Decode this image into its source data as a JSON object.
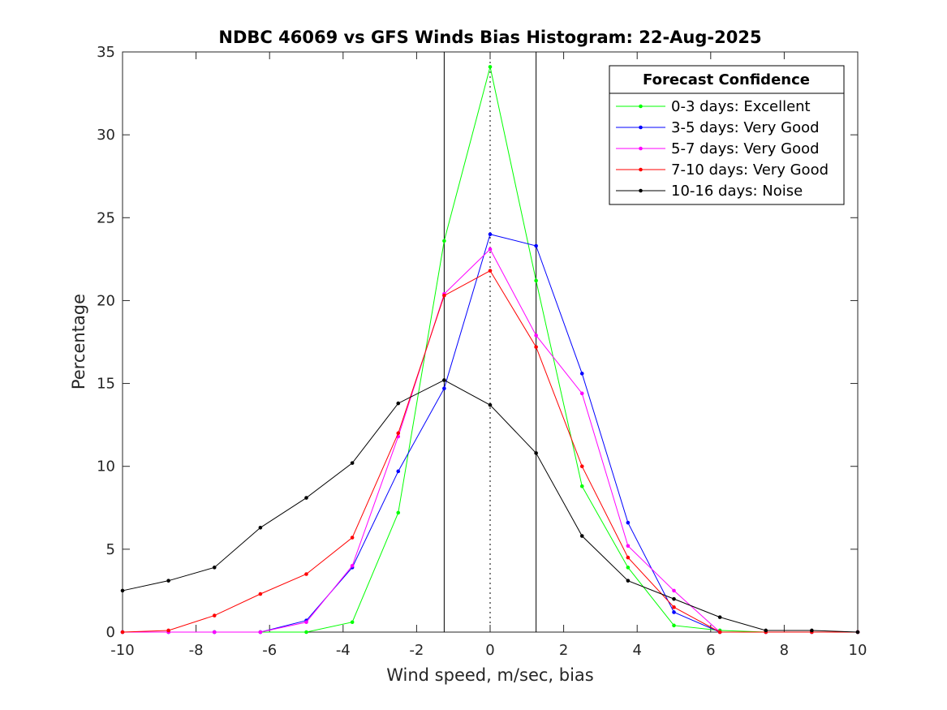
{
  "chart_data": {
    "type": "line",
    "title": "NDBC 46069 vs GFS Winds Bias Histogram: 22-Aug-2025",
    "xlabel": "Wind speed, m/sec, bias",
    "ylabel": "Percentage",
    "xlim": [
      -10,
      10
    ],
    "ylim": [
      0,
      35
    ],
    "xticks": [
      -10,
      -8,
      -6,
      -4,
      -2,
      0,
      2,
      4,
      6,
      8,
      10
    ],
    "yticks": [
      0,
      5,
      10,
      15,
      20,
      25,
      30,
      35
    ],
    "grid": false,
    "x": [
      -10,
      -8.75,
      -7.5,
      -6.25,
      -5,
      -3.75,
      -2.5,
      -1.25,
      0,
      1.25,
      2.5,
      3.75,
      5,
      6.25,
      7.5,
      8.75,
      10
    ],
    "series": [
      {
        "name": "0-3 days: Excellent",
        "color": "#00ff00",
        "values": [
          0,
          0,
          0,
          0,
          0,
          0.6,
          7.2,
          23.6,
          34.1,
          21.2,
          8.8,
          3.9,
          0.4,
          0.1,
          0,
          0,
          0
        ]
      },
      {
        "name": "3-5 days: Very Good",
        "color": "#0000ff",
        "values": [
          0,
          0,
          0,
          0,
          0.7,
          3.9,
          9.7,
          14.7,
          24.0,
          23.3,
          15.6,
          6.6,
          1.2,
          0,
          0,
          0,
          0
        ]
      },
      {
        "name": "5-7 days: Very Good",
        "color": "#ff00ff",
        "values": [
          0,
          0,
          0,
          0,
          0.6,
          4.0,
          11.8,
          20.4,
          23.1,
          17.9,
          14.4,
          5.2,
          2.5,
          0,
          0,
          0,
          0
        ]
      },
      {
        "name": "7-10 days: Very Good",
        "color": "#ff0000",
        "values": [
          0,
          0.1,
          1.0,
          2.3,
          3.5,
          5.7,
          12.0,
          20.3,
          21.8,
          17.2,
          10.0,
          4.5,
          1.5,
          0,
          0,
          0,
          0
        ]
      },
      {
        "name": "10-16 days: Noise",
        "color": "#000000",
        "values": [
          2.5,
          3.1,
          3.9,
          6.3,
          8.1,
          10.2,
          13.8,
          15.2,
          13.7,
          10.8,
          5.8,
          3.1,
          2.0,
          0.9,
          0.1,
          0.1,
          0
        ]
      }
    ],
    "vertical_lines": [
      {
        "x": -1.25,
        "style": "solid"
      },
      {
        "x": 0,
        "style": "dotted"
      },
      {
        "x": 1.25,
        "style": "solid"
      }
    ],
    "legend": {
      "title": "Forecast Confidence",
      "position": "top-right"
    }
  }
}
